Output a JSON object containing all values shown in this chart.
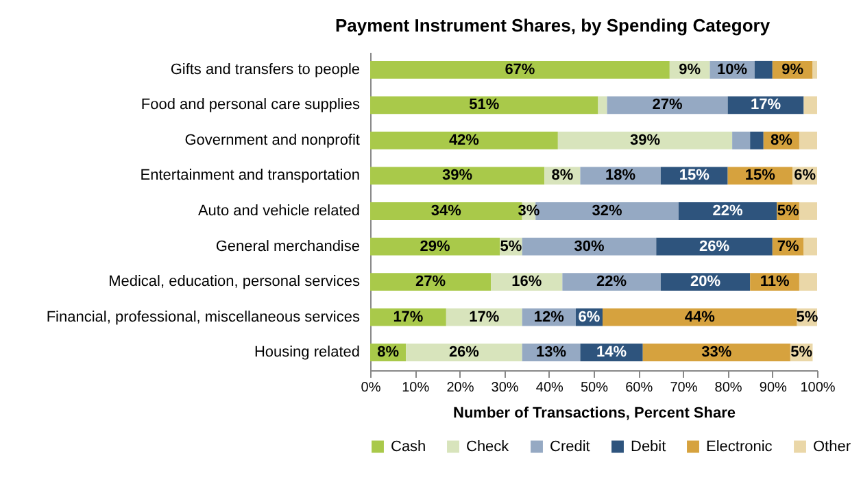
{
  "chart_data": {
    "type": "bar",
    "orientation": "horizontal",
    "stacked": true,
    "title": "Payment Instrument Shares, by Spending Category",
    "xlabel": "Number of Transactions,  Percent Share",
    "categories": [
      "Gifts and transfers to people",
      "Food and personal care supplies",
      "Government and nonprofit",
      "Entertainment and transportation",
      "Auto and vehicle related",
      "General merchandise",
      "Medical, education, personal services",
      "Financial, professional, miscellaneous services",
      "Housing related"
    ],
    "xlim": [
      0,
      100
    ],
    "xticks": [
      {
        "value": 0,
        "label": "0%"
      },
      {
        "value": 10,
        "label": "10%"
      },
      {
        "value": 20,
        "label": "20%"
      },
      {
        "value": 30,
        "label": "30%"
      },
      {
        "value": 40,
        "label": "40%"
      },
      {
        "value": 50,
        "label": "50%"
      },
      {
        "value": 60,
        "label": "60%"
      },
      {
        "value": 70,
        "label": "70%"
      },
      {
        "value": 80,
        "label": "80%"
      },
      {
        "value": 90,
        "label": "90%"
      },
      {
        "value": 100,
        "label": "100%"
      }
    ],
    "legend": "bottom",
    "grid": false,
    "series": [
      {
        "name": "Cash",
        "color": "#a9c94a",
        "values": [
          67,
          51,
          42,
          39,
          34,
          29,
          27,
          17,
          8
        ],
        "value_labels": [
          "67%",
          "51%",
          "42%",
          "39%",
          "34%",
          "29%",
          "27%",
          "17%",
          "8%"
        ]
      },
      {
        "name": "Check",
        "color": "#d8e4bc",
        "values": [
          9,
          2,
          39,
          8,
          3,
          5,
          16,
          17,
          26
        ],
        "value_labels": [
          "9%",
          null,
          "39%",
          "8%",
          "3%",
          "5%",
          "16%",
          "17%",
          "26%"
        ]
      },
      {
        "name": "Credit",
        "color": "#95a9c3",
        "values": [
          10,
          27,
          4,
          18,
          32,
          30,
          22,
          12,
          13
        ],
        "value_labels": [
          "10%",
          "27%",
          null,
          "18%",
          "32%",
          "30%",
          "22%",
          "12%",
          "13%"
        ]
      },
      {
        "name": "Debit",
        "color": "#2e547d",
        "values": [
          4,
          17,
          3,
          15,
          22,
          26,
          20,
          6,
          14
        ],
        "value_labels": [
          null,
          "17%",
          null,
          "15%",
          "22%",
          "26%",
          "20%",
          "6%",
          "14%"
        ]
      },
      {
        "name": "Electronic",
        "color": "#d6a23e",
        "values": [
          9,
          0,
          8,
          14.5,
          5,
          7,
          11,
          43.5,
          33
        ],
        "value_labels": [
          "9%",
          null,
          "8%",
          "15%",
          "5%",
          "7%",
          "11%",
          "44%",
          "33%"
        ]
      },
      {
        "name": "Other",
        "color": "#ead7a8",
        "values": [
          1,
          3,
          4,
          5.5,
          4,
          3,
          4,
          4.5,
          5
        ],
        "value_labels": [
          null,
          null,
          null,
          "6%",
          null,
          null,
          null,
          "5%",
          "5%"
        ]
      }
    ]
  }
}
